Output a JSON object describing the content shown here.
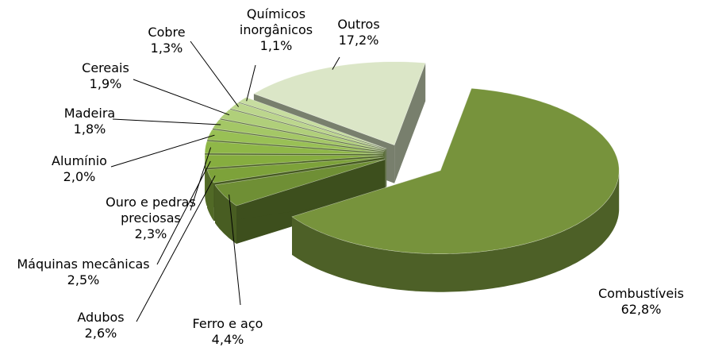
{
  "chart_data": {
    "type": "pie3d",
    "categories": [
      "Combustíveis",
      "Ferro e aço",
      "Adubos",
      "Máquinas mecânicas",
      "Ouro e pedras preciosas",
      "Alumínio",
      "Madeira",
      "Cereais",
      "Cobre",
      "Químicos inorgânicos",
      "Outros"
    ],
    "values": [
      62.8,
      4.4,
      2.6,
      2.5,
      2.3,
      2.0,
      1.8,
      1.9,
      1.3,
      1.1,
      17.2
    ],
    "value_labels": [
      "62,8%",
      "4,4%",
      "2,6%",
      "2,5%",
      "2,3%",
      "2,0%",
      "1,8%",
      "1,9%",
      "1,3%",
      "1,1%",
      "17,2%"
    ],
    "colors": [
      "#77933c",
      "#6f8f35",
      "#7da23a",
      "#86ad3f",
      "#8fb748",
      "#99c055",
      "#a4c766",
      "#b0cf7a",
      "#bcd68d",
      "#c7dda0",
      "#dbe6c7"
    ]
  }
}
